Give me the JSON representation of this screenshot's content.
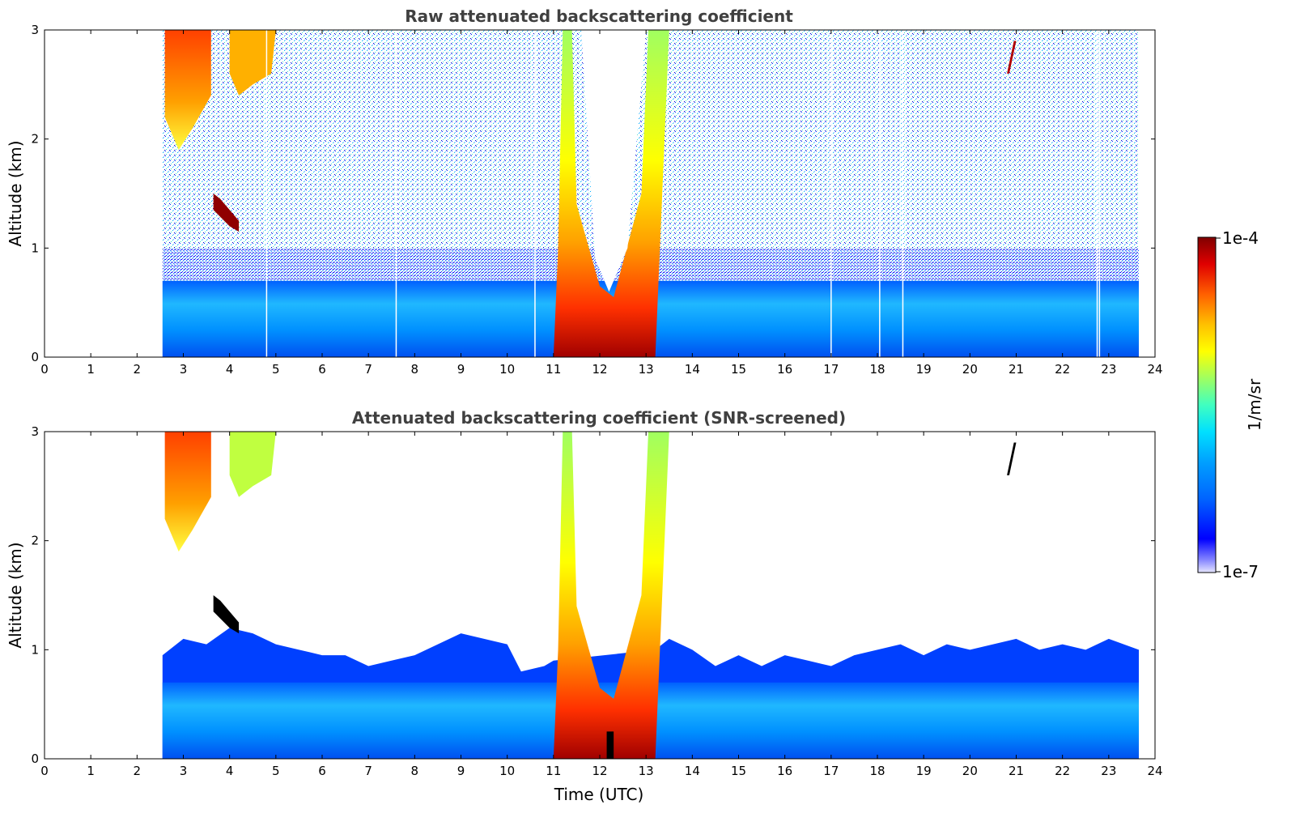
{
  "chart_data": [
    {
      "type": "heatmap",
      "title": "Raw attenuated backscattering coefficient",
      "xlabel": "",
      "ylabel": "Altitude (km)",
      "xlim": [
        0,
        24
      ],
      "ylim": [
        0,
        3
      ],
      "xticks": [
        "0",
        "1",
        "2",
        "3",
        "4",
        "5",
        "6",
        "7",
        "8",
        "9",
        "10",
        "11",
        "12",
        "13",
        "14",
        "15",
        "16",
        "17",
        "18",
        "19",
        "20",
        "21",
        "22",
        "23",
        "24"
      ],
      "yticks": [
        "0",
        "1",
        "2",
        "3"
      ],
      "data_time_range": [
        2.55,
        23.65
      ],
      "features": [
        {
          "feature": "boundary layer aerosol",
          "time": [
            2.55,
            23.65
          ],
          "altitude_top": 0.7,
          "level": "medium"
        },
        {
          "feature": "high cirrus",
          "time": [
            2.6,
            3.6
          ],
          "altitude": [
            1.9,
            3.0
          ],
          "level": "very high"
        },
        {
          "feature": "high cirrus",
          "time": [
            4.0,
            5.0
          ],
          "altitude": [
            2.4,
            3.0
          ],
          "level": "high"
        },
        {
          "feature": "cloud layer",
          "time": [
            3.6,
            4.2
          ],
          "altitude": [
            1.15,
            1.5
          ],
          "level": "saturated"
        },
        {
          "feature": "convective cloud",
          "time": [
            11.0,
            13.2
          ],
          "altitude": [
            0.0,
            3.0
          ],
          "level": "very high"
        },
        {
          "feature": "thin cloud",
          "time": [
            20.8,
            21.0
          ],
          "altitude": [
            2.6,
            2.9
          ],
          "level": "very high"
        }
      ],
      "gaps_utc": [
        4.8,
        7.6,
        10.6,
        17.0,
        18.05,
        18.55,
        22.75,
        22.8
      ]
    },
    {
      "type": "heatmap",
      "title": "Attenuated backscattering coefficient (SNR-screened)",
      "xlabel": "Time (UTC)",
      "ylabel": "Altitude (km)",
      "xlim": [
        0,
        24
      ],
      "ylim": [
        0,
        3
      ],
      "xticks": [
        "0",
        "1",
        "2",
        "3",
        "4",
        "5",
        "6",
        "7",
        "8",
        "9",
        "10",
        "11",
        "12",
        "13",
        "14",
        "15",
        "16",
        "17",
        "18",
        "19",
        "20",
        "21",
        "22",
        "23",
        "24"
      ],
      "yticks": [
        "0",
        "1",
        "2",
        "3"
      ],
      "data_time_range": [
        2.55,
        23.65
      ],
      "features": [
        {
          "feature": "screened boundary layer",
          "time": [
            2.55,
            23.65
          ],
          "altitude_top": 1.05,
          "level": "low-medium"
        },
        {
          "feature": "high cirrus",
          "time": [
            2.6,
            3.6
          ],
          "altitude": [
            1.9,
            3.0
          ],
          "level": "very high"
        },
        {
          "feature": "cloud layer",
          "time": [
            3.6,
            4.2
          ],
          "altitude": [
            1.15,
            1.5
          ],
          "level": "saturated"
        },
        {
          "feature": "convective cloud",
          "time": [
            11.0,
            13.2
          ],
          "altitude": [
            0.0,
            3.0
          ],
          "level": "very high"
        },
        {
          "feature": "thin cloud",
          "time": [
            20.8,
            21.0
          ],
          "altitude": [
            2.6,
            2.9
          ],
          "level": "saturated"
        }
      ]
    }
  ],
  "colorbar": {
    "min_label": "1e-7",
    "max_label": "1e-4",
    "label": "1/m/sr",
    "colormap": [
      "#e6e6ff",
      "#8080ff",
      "#0000ff",
      "#0064ff",
      "#00a0ff",
      "#00e0ff",
      "#40ffc0",
      "#a0ff60",
      "#ffff00",
      "#ffc000",
      "#ff6000",
      "#e00000",
      "#800000"
    ]
  }
}
